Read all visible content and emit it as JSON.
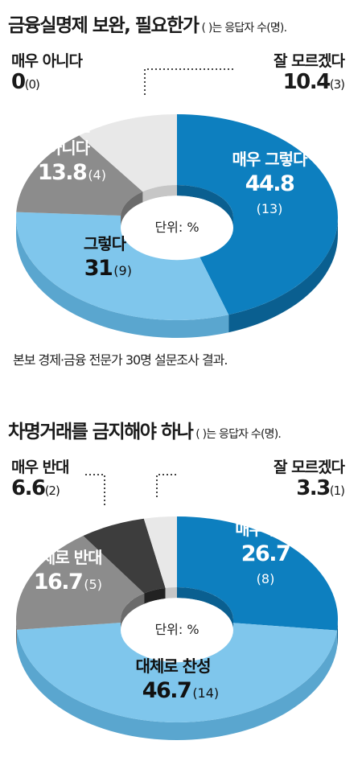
{
  "chart_data": [
    {
      "type": "pie",
      "title": "금융실명제 보완, 필요한가",
      "note": "( )는 응답자 수(명).",
      "center_label": "단위: %",
      "slices": [
        {
          "label": "매우 그렇다",
          "value": 44.8,
          "count": "(13)",
          "value_text": "44.8",
          "color": "#0d7fbf",
          "side": "#0a5f90",
          "text_color": "#ffffff"
        },
        {
          "label": "그렇다",
          "value": 31,
          "count": "(9)",
          "value_text": "31",
          "color": "#7fc6ec",
          "side": "#5aa6cf",
          "text_color": "#111111"
        },
        {
          "label": "대체로 아니다",
          "value": 13.8,
          "count": "(4)",
          "value_text": "13.8",
          "color": "#8c8c8c",
          "side": "#6b6b6b",
          "text_color": "#ffffff"
        },
        {
          "label": "매우 아니다",
          "value": 0,
          "count": "(0)",
          "value_text": "0",
          "color": "#444444",
          "side": "#333333",
          "text_color": "#111111"
        },
        {
          "label": "잘 모르겠다",
          "value": 10.4,
          "count": "(3)",
          "value_text": "10.4",
          "color": "#e8e8e8",
          "side": "#c6c6c6",
          "text_color": "#111111"
        }
      ],
      "source": "본보 경제·금융 전문가 30명 설문조사 결과."
    },
    {
      "type": "pie",
      "title": "차명거래를 금지해야 하나",
      "note": "( )는 응답자 수(명).",
      "center_label": "단위: %",
      "slices": [
        {
          "label": "매우 찬성",
          "value": 26.7,
          "count": "(8)",
          "value_text": "26.7",
          "color": "#0d7fbf",
          "side": "#0a5f90",
          "text_color": "#ffffff"
        },
        {
          "label": "대체로 찬성",
          "value": 46.7,
          "count": "(14)",
          "value_text": "46.7",
          "color": "#7fc6ec",
          "side": "#5aa6cf",
          "text_color": "#111111"
        },
        {
          "label": "대체로 반대",
          "value": 16.7,
          "count": "(5)",
          "value_text": "16.7",
          "color": "#8c8c8c",
          "side": "#6b6b6b",
          "text_color": "#ffffff"
        },
        {
          "label": "매우 반대",
          "value": 6.6,
          "count": "(2)",
          "value_text": "6.6",
          "color": "#3d3d3d",
          "side": "#222222",
          "text_color": "#111111"
        },
        {
          "label": "잘 모르겠다",
          "value": 3.3,
          "count": "(1)",
          "value_text": "3.3",
          "color": "#e8e8e8",
          "side": "#c6c6c6",
          "text_color": "#111111"
        }
      ]
    }
  ]
}
